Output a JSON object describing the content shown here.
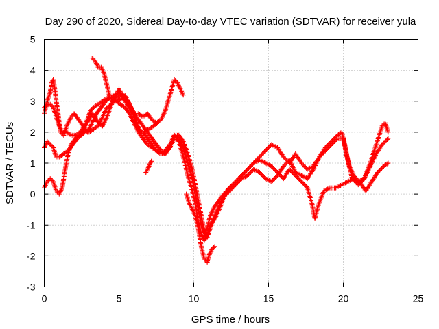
{
  "chart_data": {
    "type": "scatter",
    "title": "Day 290 of 2020, Sidereal Day-to-day VTEC variation (SDTVAR) for receiver yula",
    "xlabel": "GPS time / hours",
    "ylabel": "SDTVAR / TECUs",
    "xlim": [
      0,
      25
    ],
    "ylim": [
      -3,
      5
    ],
    "xticks": [
      0,
      5,
      10,
      15,
      20,
      25
    ],
    "yticks": [
      -3,
      -2,
      -1,
      0,
      1,
      2,
      3,
      4,
      5
    ],
    "xtick_labels": [
      "0",
      "5",
      "10",
      "15",
      "20",
      "25"
    ],
    "ytick_labels": [
      "-3",
      "-2",
      "-1",
      "0",
      "1",
      "2",
      "3",
      "4",
      "5"
    ],
    "grid": true,
    "legend": "none",
    "marker": "plus",
    "series_color": "#ff0000",
    "series": [
      {
        "points": [
          [
            0.0,
            2.6
          ],
          [
            0.2,
            3.0
          ],
          [
            0.4,
            3.3
          ],
          [
            0.5,
            3.6
          ],
          [
            0.6,
            3.7
          ],
          [
            0.7,
            3.4
          ],
          [
            0.8,
            3.0
          ],
          [
            0.9,
            2.7
          ],
          [
            1.0,
            2.3
          ],
          [
            1.1,
            2.0
          ],
          [
            1.3,
            1.9
          ],
          [
            1.5,
            2.2
          ],
          [
            1.8,
            2.5
          ],
          [
            2.0,
            2.6
          ],
          [
            2.3,
            2.4
          ],
          [
            2.6,
            2.2
          ],
          [
            2.9,
            2.0
          ],
          [
            3.2,
            2.3
          ],
          [
            3.5,
            2.6
          ],
          [
            3.8,
            2.8
          ],
          [
            4.1,
            3.0
          ],
          [
            4.4,
            3.1
          ],
          [
            4.7,
            3.2
          ],
          [
            5.0,
            3.3
          ],
          [
            5.3,
            3.2
          ],
          [
            5.6,
            3.0
          ],
          [
            5.9,
            2.7
          ],
          [
            6.1,
            2.4
          ],
          [
            6.3,
            2.1
          ],
          [
            6.6,
            2.0
          ],
          [
            6.9,
            1.8
          ],
          [
            7.2,
            1.6
          ],
          [
            7.5,
            1.4
          ],
          [
            7.8,
            1.3
          ],
          [
            8.1,
            1.3
          ],
          [
            8.4,
            1.5
          ],
          [
            8.7,
            1.8
          ],
          [
            9.0,
            1.8
          ],
          [
            9.3,
            1.5
          ],
          [
            9.6,
            1.0
          ],
          [
            9.9,
            0.5
          ],
          [
            10.1,
            0.0
          ],
          [
            10.3,
            -0.5
          ],
          [
            10.5,
            -1.0
          ],
          [
            10.7,
            -1.3
          ],
          [
            10.9,
            -1.1
          ],
          [
            11.1,
            -0.7
          ],
          [
            11.4,
            -0.4
          ],
          [
            11.7,
            -0.2
          ],
          [
            12.0,
            0.0
          ],
          [
            12.4,
            0.2
          ],
          [
            12.8,
            0.4
          ],
          [
            13.2,
            0.6
          ],
          [
            13.6,
            0.8
          ],
          [
            14.0,
            1.0
          ],
          [
            14.4,
            1.1
          ],
          [
            14.8,
            1.0
          ],
          [
            15.2,
            0.9
          ],
          [
            15.6,
            0.7
          ],
          [
            16.0,
            0.5
          ],
          [
            16.4,
            0.8
          ],
          [
            16.8,
            0.6
          ],
          [
            17.2,
            0.4
          ],
          [
            17.6,
            0.2
          ],
          [
            17.9,
            -0.3
          ],
          [
            18.1,
            -0.8
          ],
          [
            18.3,
            -0.4
          ],
          [
            18.7,
            0.1
          ],
          [
            19.1,
            0.2
          ],
          [
            19.5,
            0.2
          ],
          [
            19.9,
            0.3
          ],
          [
            20.3,
            0.4
          ],
          [
            20.7,
            0.5
          ],
          [
            21.1,
            0.4
          ],
          [
            21.5,
            0.1
          ],
          [
            21.9,
            0.4
          ],
          [
            22.3,
            0.7
          ],
          [
            22.7,
            0.9
          ],
          [
            23.0,
            1.0
          ]
        ]
      },
      {
        "points": [
          [
            0.0,
            1.5
          ],
          [
            0.2,
            1.7
          ],
          [
            0.4,
            1.6
          ],
          [
            0.6,
            1.5
          ],
          [
            0.8,
            1.2
          ],
          [
            1.0,
            1.2
          ],
          [
            1.3,
            1.3
          ],
          [
            1.6,
            1.4
          ],
          [
            1.9,
            1.6
          ],
          [
            2.2,
            1.8
          ],
          [
            2.5,
            1.9
          ],
          [
            2.8,
            2.3
          ],
          [
            3.1,
            2.7
          ],
          [
            3.3,
            2.8
          ],
          [
            3.6,
            2.9
          ],
          [
            3.9,
            3.0
          ],
          [
            4.2,
            3.1
          ],
          [
            4.5,
            3.1
          ],
          [
            4.8,
            3.0
          ],
          [
            5.1,
            2.9
          ],
          [
            5.4,
            2.8
          ],
          [
            5.7,
            2.6
          ],
          [
            6.0,
            2.3
          ],
          [
            6.3,
            2.0
          ],
          [
            6.6,
            1.8
          ],
          [
            6.9,
            1.6
          ],
          [
            7.2,
            1.5
          ],
          [
            7.5,
            1.4
          ],
          [
            7.8,
            1.3
          ],
          [
            8.1,
            1.4
          ],
          [
            8.4,
            1.6
          ],
          [
            8.7,
            1.9
          ],
          [
            9.0,
            1.7
          ],
          [
            9.3,
            1.2
          ],
          [
            9.6,
            0.6
          ],
          [
            9.9,
            0.1
          ],
          [
            10.1,
            -0.3
          ],
          [
            10.3,
            -0.9
          ],
          [
            10.5,
            -1.3
          ],
          [
            10.7,
            -1.5
          ],
          [
            10.9,
            -1.3
          ],
          [
            11.1,
            -1.0
          ],
          [
            11.4,
            -0.8
          ],
          [
            11.7,
            -0.5
          ],
          [
            12.0,
            -0.1
          ],
          [
            12.4,
            0.2
          ],
          [
            12.8,
            0.4
          ],
          [
            13.2,
            0.6
          ],
          [
            13.6,
            0.8
          ],
          [
            14.0,
            1.0
          ],
          [
            14.4,
            1.2
          ],
          [
            14.8,
            1.4
          ],
          [
            15.2,
            1.6
          ],
          [
            15.6,
            1.5
          ],
          [
            16.0,
            1.2
          ],
          [
            16.4,
            1.0
          ],
          [
            16.8,
            1.3
          ],
          [
            17.2,
            1.0
          ],
          [
            17.6,
            0.8
          ],
          [
            18.0,
            0.9
          ],
          [
            18.4,
            1.2
          ],
          [
            18.8,
            1.5
          ],
          [
            19.2,
            1.7
          ],
          [
            19.6,
            1.9
          ],
          [
            19.9,
            2.0
          ],
          [
            20.1,
            1.6
          ],
          [
            20.3,
            1.1
          ],
          [
            20.6,
            0.5
          ],
          [
            21.0,
            0.3
          ],
          [
            21.4,
            0.5
          ],
          [
            21.8,
            0.9
          ],
          [
            22.2,
            1.3
          ],
          [
            22.6,
            1.6
          ],
          [
            23.0,
            1.8
          ]
        ]
      },
      {
        "points": [
          [
            0.0,
            0.2
          ],
          [
            0.2,
            0.4
          ],
          [
            0.4,
            0.5
          ],
          [
            0.6,
            0.4
          ],
          [
            0.8,
            0.1
          ],
          [
            1.0,
            0.0
          ],
          [
            1.2,
            0.2
          ],
          [
            1.4,
            0.8
          ],
          [
            1.6,
            1.3
          ],
          [
            1.8,
            1.6
          ],
          [
            2.1,
            1.8
          ],
          [
            2.4,
            1.9
          ],
          [
            2.7,
            2.0
          ],
          [
            3.0,
            2.0
          ],
          [
            3.3,
            2.1
          ],
          [
            3.6,
            2.2
          ],
          [
            3.9,
            2.5
          ],
          [
            4.2,
            2.8
          ],
          [
            4.5,
            2.9
          ],
          [
            4.8,
            3.1
          ],
          [
            5.1,
            3.2
          ],
          [
            5.4,
            3.2
          ],
          [
            5.7,
            2.9
          ],
          [
            6.0,
            2.6
          ],
          [
            6.3,
            2.4
          ],
          [
            6.6,
            2.2
          ],
          [
            6.9,
            2.0
          ],
          [
            7.2,
            1.8
          ],
          [
            7.5,
            1.6
          ],
          [
            7.8,
            1.4
          ],
          [
            8.1,
            1.3
          ],
          [
            8.4,
            1.5
          ],
          [
            8.7,
            1.9
          ],
          [
            9.0,
            1.9
          ],
          [
            9.3,
            1.7
          ],
          [
            9.6,
            1.3
          ],
          [
            9.9,
            0.8
          ],
          [
            10.1,
            0.3
          ],
          [
            10.3,
            -0.2
          ],
          [
            10.5,
            -0.7
          ],
          [
            10.7,
            -1.2
          ],
          [
            10.9,
            -1.4
          ],
          [
            11.1,
            -1.1
          ],
          [
            11.4,
            -0.7
          ],
          [
            11.7,
            -0.4
          ],
          [
            12.0,
            -0.1
          ],
          [
            12.4,
            0.1
          ],
          [
            12.8,
            0.3
          ],
          [
            13.2,
            0.5
          ],
          [
            13.6,
            0.6
          ],
          [
            14.0,
            0.8
          ],
          [
            14.4,
            0.7
          ],
          [
            14.8,
            0.5
          ],
          [
            15.2,
            0.4
          ],
          [
            15.6,
            0.6
          ],
          [
            16.0,
            0.9
          ],
          [
            16.4,
            1.1
          ],
          [
            16.8,
            0.7
          ],
          [
            17.2,
            0.6
          ],
          [
            17.6,
            0.5
          ],
          [
            18.0,
            0.8
          ],
          [
            18.4,
            1.2
          ],
          [
            18.8,
            1.4
          ],
          [
            19.2,
            1.6
          ],
          [
            19.6,
            1.8
          ],
          [
            20.0,
            1.8
          ],
          [
            20.2,
            1.3
          ],
          [
            20.4,
            0.9
          ],
          [
            20.7,
            0.6
          ],
          [
            21.0,
            0.4
          ],
          [
            21.4,
            0.5
          ],
          [
            21.8,
            1.0
          ],
          [
            22.2,
            1.6
          ],
          [
            22.6,
            2.2
          ],
          [
            22.8,
            2.3
          ],
          [
            23.0,
            2.0
          ]
        ]
      },
      {
        "points": [
          [
            0.0,
            2.8
          ],
          [
            0.2,
            2.9
          ],
          [
            0.4,
            2.9
          ],
          [
            0.6,
            2.8
          ],
          [
            0.8,
            2.5
          ],
          [
            1.0,
            2.2
          ],
          [
            1.2,
            2.0
          ],
          [
            1.5,
            2.0
          ],
          [
            1.8,
            1.9
          ],
          [
            2.1,
            1.9
          ],
          [
            2.4,
            2.0
          ],
          [
            2.7,
            2.2
          ],
          [
            3.0,
            2.4
          ],
          [
            3.2,
            2.6
          ],
          [
            3.4,
            2.5
          ],
          [
            3.6,
            2.3
          ],
          [
            3.9,
            2.2
          ],
          [
            4.2,
            2.5
          ],
          [
            4.5,
            2.9
          ],
          [
            4.8,
            3.2
          ],
          [
            5.0,
            3.4
          ],
          [
            5.2,
            3.2
          ],
          [
            5.4,
            3.0
          ],
          [
            5.7,
            2.8
          ],
          [
            6.0,
            2.6
          ],
          [
            6.3,
            2.6
          ],
          [
            6.6,
            2.5
          ],
          [
            6.9,
            2.6
          ],
          [
            7.2,
            2.4
          ],
          [
            7.5,
            2.3
          ],
          [
            7.8,
            2.4
          ],
          [
            8.1,
            2.7
          ],
          [
            8.4,
            3.2
          ],
          [
            8.7,
            3.7
          ],
          [
            8.9,
            3.6
          ],
          [
            9.1,
            3.4
          ],
          [
            9.3,
            3.2
          ]
        ]
      },
      {
        "points": [
          [
            3.2,
            4.4
          ],
          [
            3.4,
            4.3
          ],
          [
            3.6,
            4.1
          ],
          [
            3.8,
            4.1
          ],
          [
            4.0,
            3.9
          ],
          [
            4.2,
            3.5
          ],
          [
            4.4,
            3.1
          ],
          [
            4.6,
            3.0
          ],
          [
            4.9,
            3.0
          ],
          [
            5.2,
            3.1
          ],
          [
            5.5,
            3.0
          ],
          [
            5.8,
            2.8
          ],
          [
            6.1,
            2.4
          ],
          [
            6.4,
            2.0
          ],
          [
            6.7,
            2.0
          ],
          [
            7.0,
            2.1
          ],
          [
            7.3,
            2.2
          ],
          [
            7.6,
            2.3
          ]
        ]
      },
      {
        "points": [
          [
            6.8,
            0.7
          ],
          [
            7.0,
            0.9
          ],
          [
            7.2,
            1.1
          ],
          [
            9.5,
            0.0
          ],
          [
            9.7,
            -0.3
          ],
          [
            9.9,
            -0.5
          ],
          [
            10.1,
            -0.7
          ],
          [
            10.3,
            -1.1
          ],
          [
            10.5,
            -1.7
          ],
          [
            10.7,
            -2.1
          ],
          [
            10.9,
            -2.2
          ],
          [
            11.0,
            -2.0
          ],
          [
            11.2,
            -1.8
          ],
          [
            11.4,
            -1.7
          ]
        ]
      }
    ]
  }
}
